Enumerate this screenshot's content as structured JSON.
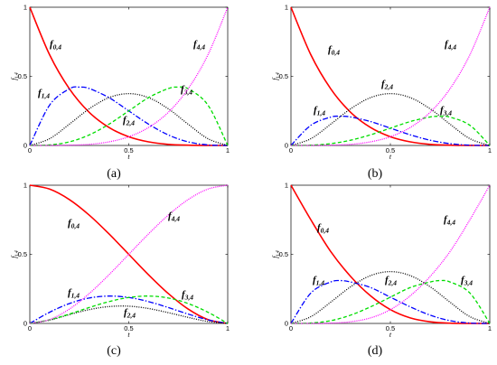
{
  "chart_data": [
    {
      "type": "line",
      "panel_label": "(a)",
      "xlabel": "t",
      "ylabel": "f",
      "ylabel_sub": "i,4",
      "xlim": [
        0,
        1
      ],
      "ylim": [
        0,
        1
      ],
      "x_ticks": [
        "0",
        "0.5",
        "1"
      ],
      "y_ticks": [
        "0",
        "0.5",
        "1"
      ],
      "series": [
        {
          "name": "f",
          "sub": "0,4",
          "color": "#ff0000",
          "dash": "",
          "x": [
            0,
            0.1,
            0.2,
            0.3,
            0.4,
            0.5,
            0.6,
            0.7,
            0.8,
            0.9,
            1
          ],
          "y": [
            1,
            0.656,
            0.41,
            0.24,
            0.13,
            0.063,
            0.026,
            0.008,
            0.002,
            0.0001,
            0
          ]
        },
        {
          "name": "f",
          "sub": "1,4",
          "color": "#0000ff",
          "dash": "6,2,1.5,2",
          "x": [
            0,
            0.1,
            0.2,
            0.25,
            0.3,
            0.4,
            0.5,
            0.6,
            0.7,
            0.8,
            0.9,
            1
          ],
          "y": [
            0,
            0.292,
            0.41,
            0.422,
            0.412,
            0.346,
            0.25,
            0.154,
            0.076,
            0.026,
            0.004,
            0
          ]
        },
        {
          "name": "f",
          "sub": "2,4",
          "color": "#000000",
          "dash": "1,1.5",
          "x": [
            0,
            0.1,
            0.2,
            0.3,
            0.4,
            0.5,
            0.6,
            0.7,
            0.8,
            0.9,
            1
          ],
          "y": [
            0,
            0.049,
            0.154,
            0.265,
            0.346,
            0.375,
            0.346,
            0.265,
            0.154,
            0.049,
            0
          ]
        },
        {
          "name": "f",
          "sub": "3,4",
          "color": "#00dd00",
          "dash": "4,2.5",
          "x": [
            0,
            0.1,
            0.2,
            0.3,
            0.4,
            0.5,
            0.6,
            0.7,
            0.75,
            0.8,
            0.9,
            1
          ],
          "y": [
            0,
            0.004,
            0.026,
            0.076,
            0.154,
            0.25,
            0.346,
            0.412,
            0.422,
            0.41,
            0.292,
            0
          ]
        },
        {
          "name": "f",
          "sub": "4,4",
          "color": "#ff00ff",
          "dash": "1,1.2",
          "x": [
            0,
            0.1,
            0.2,
            0.3,
            0.4,
            0.5,
            0.6,
            0.7,
            0.8,
            0.9,
            1
          ],
          "y": [
            0,
            0.0001,
            0.002,
            0.008,
            0.026,
            0.063,
            0.13,
            0.24,
            0.41,
            0.656,
            1
          ]
        }
      ]
    },
    {
      "type": "line",
      "panel_label": "(b)",
      "xlabel": "t",
      "ylabel": "f",
      "ylabel_sub": "i,4",
      "xlim": [
        0,
        1
      ],
      "ylim": [
        0,
        1
      ],
      "x_ticks": [
        "0",
        "0.5",
        "1"
      ],
      "y_ticks": [
        "0",
        "0.5",
        "1"
      ],
      "series": [
        {
          "name": "f",
          "sub": "0,4",
          "color": "#ff0000",
          "dash": "",
          "x": [
            0,
            0.1,
            0.2,
            0.3,
            0.4,
            0.5,
            0.6,
            0.7,
            0.8,
            0.9,
            1
          ],
          "y": [
            1,
            0.656,
            0.41,
            0.24,
            0.13,
            0.063,
            0.026,
            0.008,
            0.002,
            0.0001,
            0
          ]
        },
        {
          "name": "f",
          "sub": "1,4",
          "color": "#0000ff",
          "dash": "6,2,1.5,2",
          "x": [
            0,
            0.1,
            0.2,
            0.25,
            0.3,
            0.4,
            0.5,
            0.6,
            0.7,
            0.8,
            0.9,
            1
          ],
          "y": [
            0,
            0.146,
            0.205,
            0.211,
            0.206,
            0.173,
            0.125,
            0.077,
            0.038,
            0.013,
            0.002,
            0
          ]
        },
        {
          "name": "f",
          "sub": "2,4",
          "color": "#000000",
          "dash": "1,1.5",
          "x": [
            0,
            0.1,
            0.2,
            0.3,
            0.4,
            0.5,
            0.6,
            0.7,
            0.8,
            0.9,
            1
          ],
          "y": [
            0,
            0.049,
            0.154,
            0.265,
            0.346,
            0.375,
            0.346,
            0.265,
            0.154,
            0.049,
            0
          ]
        },
        {
          "name": "f",
          "sub": "3,4",
          "color": "#00dd00",
          "dash": "4,2.5",
          "x": [
            0,
            0.1,
            0.2,
            0.3,
            0.4,
            0.5,
            0.6,
            0.7,
            0.75,
            0.8,
            0.9,
            1
          ],
          "y": [
            0,
            0.002,
            0.013,
            0.038,
            0.077,
            0.125,
            0.173,
            0.206,
            0.211,
            0.205,
            0.146,
            0
          ]
        },
        {
          "name": "f",
          "sub": "4,4",
          "color": "#ff00ff",
          "dash": "1,1.2",
          "x": [
            0,
            0.1,
            0.2,
            0.3,
            0.4,
            0.5,
            0.6,
            0.7,
            0.8,
            0.9,
            1
          ],
          "y": [
            0,
            0.0001,
            0.002,
            0.008,
            0.026,
            0.063,
            0.13,
            0.24,
            0.41,
            0.656,
            1
          ]
        }
      ]
    },
    {
      "type": "line",
      "panel_label": "(c)",
      "xlabel": "t",
      "ylabel": "f",
      "ylabel_sub": "i,4",
      "xlim": [
        0,
        1
      ],
      "ylim": [
        0,
        1
      ],
      "x_ticks": [
        "0",
        "0.5",
        "1"
      ],
      "y_ticks": [
        "0",
        "0.5",
        "1"
      ],
      "series": [
        {
          "name": "f",
          "sub": "0,4",
          "color": "#ff0000",
          "dash": "",
          "x": [
            0,
            0.1,
            0.2,
            0.3,
            0.4,
            0.5,
            0.6,
            0.7,
            0.8,
            0.9,
            1
          ],
          "y": [
            1,
            0.972,
            0.896,
            0.784,
            0.648,
            0.5,
            0.352,
            0.216,
            0.104,
            0.028,
            0
          ]
        },
        {
          "name": "f",
          "sub": "1,4",
          "color": "#0000ff",
          "dash": "6,2,1.5,2",
          "x": [
            0,
            0.1,
            0.2,
            0.3,
            0.4,
            0.5,
            0.6,
            0.7,
            0.8,
            0.9,
            1
          ],
          "y": [
            0,
            0.081,
            0.144,
            0.184,
            0.198,
            0.188,
            0.158,
            0.115,
            0.068,
            0.026,
            0
          ]
        },
        {
          "name": "f",
          "sub": "2,4",
          "color": "#000000",
          "dash": "1,1.5",
          "x": [
            0,
            0.1,
            0.2,
            0.3,
            0.4,
            0.5,
            0.6,
            0.7,
            0.8,
            0.9,
            1
          ],
          "y": [
            0,
            0.024,
            0.064,
            0.1,
            0.122,
            0.125,
            0.108,
            0.078,
            0.044,
            0.014,
            0
          ]
        },
        {
          "name": "f",
          "sub": "3,4",
          "color": "#00dd00",
          "dash": "4,2.5",
          "x": [
            0,
            0.1,
            0.2,
            0.3,
            0.4,
            0.5,
            0.6,
            0.7,
            0.8,
            0.9,
            1
          ],
          "y": [
            0,
            0.026,
            0.068,
            0.115,
            0.158,
            0.188,
            0.198,
            0.184,
            0.144,
            0.081,
            0
          ]
        },
        {
          "name": "f",
          "sub": "4,4",
          "color": "#ff00ff",
          "dash": "1,1.2",
          "x": [
            0,
            0.1,
            0.2,
            0.3,
            0.4,
            0.5,
            0.6,
            0.7,
            0.8,
            0.9,
            1
          ],
          "y": [
            0,
            0.028,
            0.104,
            0.216,
            0.352,
            0.5,
            0.648,
            0.784,
            0.896,
            0.972,
            1
          ]
        }
      ]
    },
    {
      "type": "line",
      "panel_label": "(d)",
      "xlabel": "t",
      "ylabel": "f",
      "ylabel_sub": "i,4",
      "xlim": [
        0,
        1
      ],
      "ylim": [
        0,
        1
      ],
      "x_ticks": [
        "0",
        "0.5",
        "1"
      ],
      "y_ticks": [
        "0",
        "0.5",
        "1"
      ],
      "series": [
        {
          "name": "f",
          "sub": "0,4",
          "color": "#ff0000",
          "dash": "",
          "x": [
            0,
            0.1,
            0.2,
            0.3,
            0.4,
            0.5,
            0.6,
            0.7,
            0.8,
            0.9,
            1
          ],
          "y": [
            1,
            0.75,
            0.52,
            0.34,
            0.2,
            0.1,
            0.04,
            0.012,
            0.002,
            0.0001,
            0
          ]
        },
        {
          "name": "f",
          "sub": "1,4",
          "color": "#0000ff",
          "dash": "6,2,1.5,2",
          "x": [
            0,
            0.1,
            0.2,
            0.25,
            0.3,
            0.4,
            0.5,
            0.6,
            0.7,
            0.8,
            0.9,
            1
          ],
          "y": [
            0,
            0.22,
            0.3,
            0.31,
            0.3,
            0.26,
            0.19,
            0.12,
            0.06,
            0.02,
            0.003,
            0
          ]
        },
        {
          "name": "f",
          "sub": "2,4",
          "color": "#000000",
          "dash": "1,1.5",
          "x": [
            0,
            0.1,
            0.2,
            0.3,
            0.4,
            0.5,
            0.6,
            0.7,
            0.8,
            0.9,
            1
          ],
          "y": [
            0,
            0.049,
            0.154,
            0.265,
            0.346,
            0.375,
            0.346,
            0.265,
            0.154,
            0.049,
            0
          ]
        },
        {
          "name": "f",
          "sub": "3,4",
          "color": "#00dd00",
          "dash": "4,2.5",
          "x": [
            0,
            0.1,
            0.2,
            0.3,
            0.4,
            0.5,
            0.6,
            0.7,
            0.75,
            0.8,
            0.9,
            1
          ],
          "y": [
            0,
            0.003,
            0.02,
            0.06,
            0.12,
            0.19,
            0.26,
            0.3,
            0.31,
            0.3,
            0.22,
            0
          ]
        },
        {
          "name": "f",
          "sub": "4,4",
          "color": "#ff00ff",
          "dash": "1,1.2",
          "x": [
            0,
            0.1,
            0.2,
            0.3,
            0.4,
            0.5,
            0.6,
            0.7,
            0.8,
            0.9,
            1
          ],
          "y": [
            0,
            0.0001,
            0.002,
            0.012,
            0.04,
            0.1,
            0.2,
            0.34,
            0.52,
            0.75,
            1
          ]
        }
      ]
    }
  ]
}
